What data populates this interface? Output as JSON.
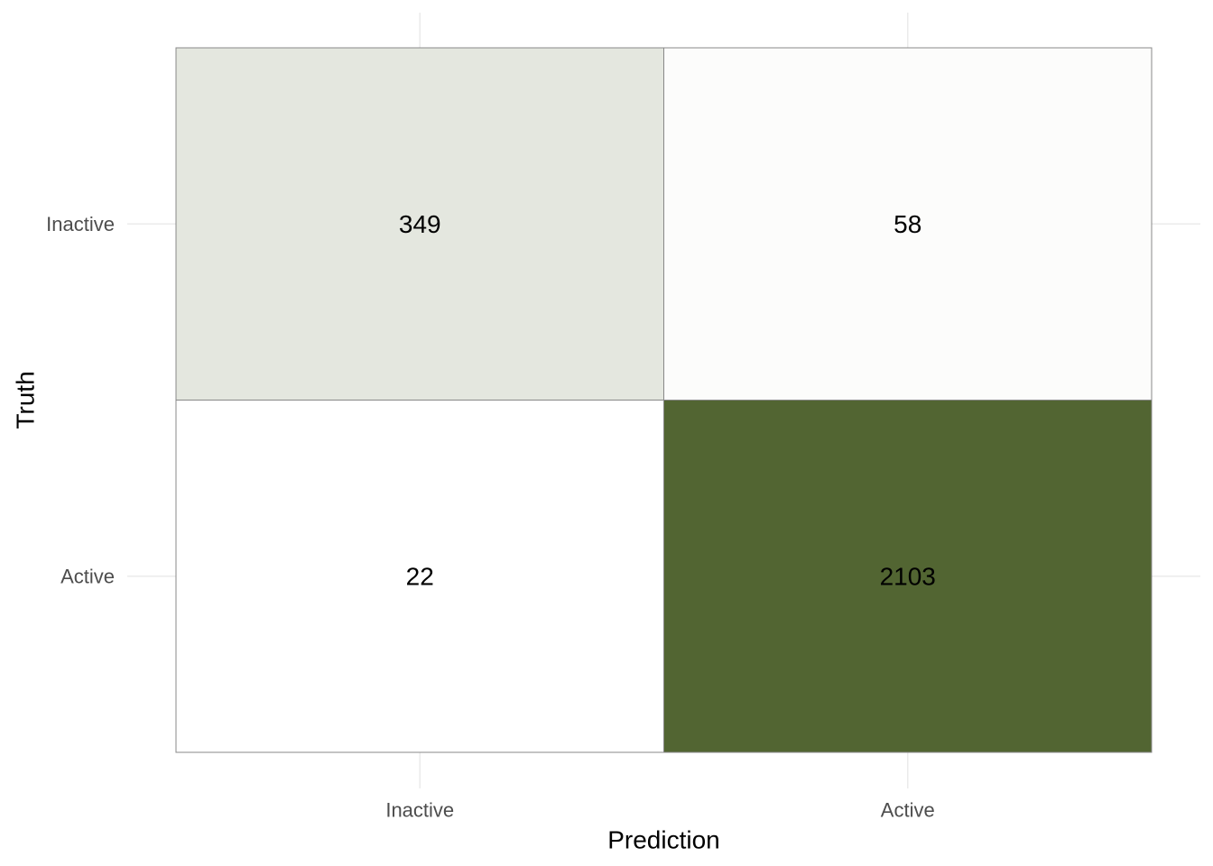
{
  "chart_data": {
    "type": "heatmap",
    "title": "",
    "xlabel": "Prediction",
    "ylabel": "Truth",
    "x_categories": [
      "Inactive",
      "Active"
    ],
    "y_categories": [
      "Inactive",
      "Active"
    ],
    "cells": [
      {
        "truth": "Inactive",
        "prediction": "Inactive",
        "value": 349
      },
      {
        "truth": "Inactive",
        "prediction": "Active",
        "value": 58
      },
      {
        "truth": "Active",
        "prediction": "Inactive",
        "value": 22
      },
      {
        "truth": "Active",
        "prediction": "Active",
        "value": 2103
      }
    ],
    "color_low": "#ffffff",
    "color_high": "#526532",
    "grid": true,
    "legend": "none"
  }
}
